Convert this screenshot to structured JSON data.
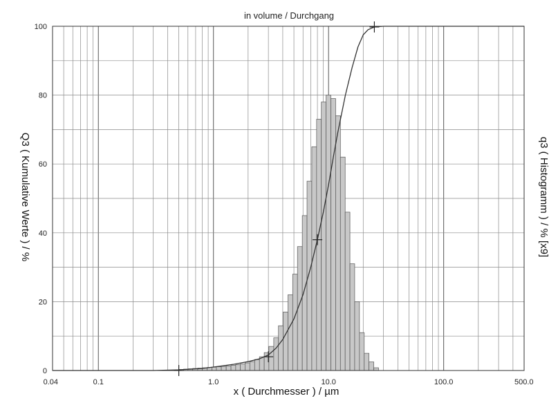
{
  "chart_data": {
    "type": "bar",
    "title": "in volume / Durchgang",
    "xlabel": "x ( Durchmesser ) / µm",
    "ylabel_left": "Q3 ( Kumulative Werte ) / %",
    "ylabel_right": "q3 ( Histogramm ) / % [x9]",
    "x_scale": "log",
    "xlim": [
      0.04,
      500.0
    ],
    "ylim": [
      0,
      100
    ],
    "grid": true,
    "x_tick_labels": [
      {
        "value": 0.04,
        "label": "0.04"
      },
      {
        "value": 0.1,
        "label": "0.1"
      },
      {
        "value": 1.0,
        "label": "1.0"
      },
      {
        "value": 10.0,
        "label": "10.0"
      },
      {
        "value": 100.0,
        "label": "100.0"
      },
      {
        "value": 500.0,
        "label": "500.0"
      }
    ],
    "y_tick_labels": [
      {
        "value": 0,
        "label": "0"
      },
      {
        "value": 20,
        "label": "20"
      },
      {
        "value": 40,
        "label": "40"
      },
      {
        "value": 60,
        "label": "60"
      },
      {
        "value": 80,
        "label": "80"
      },
      {
        "value": 100,
        "label": "100"
      }
    ],
    "series": [
      {
        "kind": "histogram",
        "bin_edges": [
          0.5,
          0.55,
          0.6,
          0.66,
          0.73,
          0.8,
          0.88,
          0.97,
          1.06,
          1.17,
          1.29,
          1.42,
          1.56,
          1.71,
          1.88,
          2.07,
          2.28,
          2.51,
          2.76,
          3.03,
          3.34,
          3.67,
          4.04,
          4.44,
          4.88,
          5.37,
          5.91,
          6.5,
          7.15,
          7.87,
          8.65,
          9.52,
          10.47,
          11.52,
          12.67,
          13.94,
          15.33,
          16.86,
          18.55,
          20.41,
          22.45,
          24.7,
          27.17
        ],
        "values": [
          0.3,
          0.4,
          0.5,
          0.6,
          0.7,
          0.8,
          0.9,
          1.0,
          1.1,
          1.2,
          1.3,
          1.5,
          1.7,
          1.9,
          2.2,
          2.6,
          3.2,
          4.0,
          5.2,
          7.0,
          9.5,
          13.0,
          17.0,
          22.0,
          28.0,
          36.0,
          45.0,
          55.0,
          65.0,
          73.0,
          78.0,
          80.0,
          79.0,
          74.0,
          62.0,
          46.0,
          31.0,
          20.0,
          11.0,
          5.0,
          2.5,
          0.8
        ]
      },
      {
        "kind": "cumulative_line",
        "x": [
          0.04,
          0.1,
          0.3,
          0.5,
          0.8,
          1.0,
          1.5,
          2.0,
          2.5,
          3.0,
          3.5,
          4.0,
          5.0,
          6.0,
          7.0,
          8.0,
          9.0,
          10.0,
          11.0,
          12.0,
          14.0,
          16.0,
          18.0,
          20.0,
          22.0,
          25.0,
          30.0,
          50.0,
          100.0,
          500.0
        ],
        "y": [
          0,
          0,
          0,
          0.2,
          0.6,
          1.0,
          1.8,
          2.6,
          3.4,
          4.5,
          6.5,
          9.0,
          15.0,
          22.0,
          30.0,
          38.0,
          46.0,
          54.0,
          62.0,
          69.0,
          80.0,
          88.0,
          94.0,
          97.5,
          99.0,
          99.8,
          100,
          100,
          100,
          100
        ]
      }
    ],
    "markers": [
      {
        "x": 0.5,
        "y": 0
      },
      {
        "x": 3.0,
        "y": 4.0
      },
      {
        "x": 8.0,
        "y": 38.0
      },
      {
        "x": 25.0,
        "y": 99.8
      }
    ]
  }
}
